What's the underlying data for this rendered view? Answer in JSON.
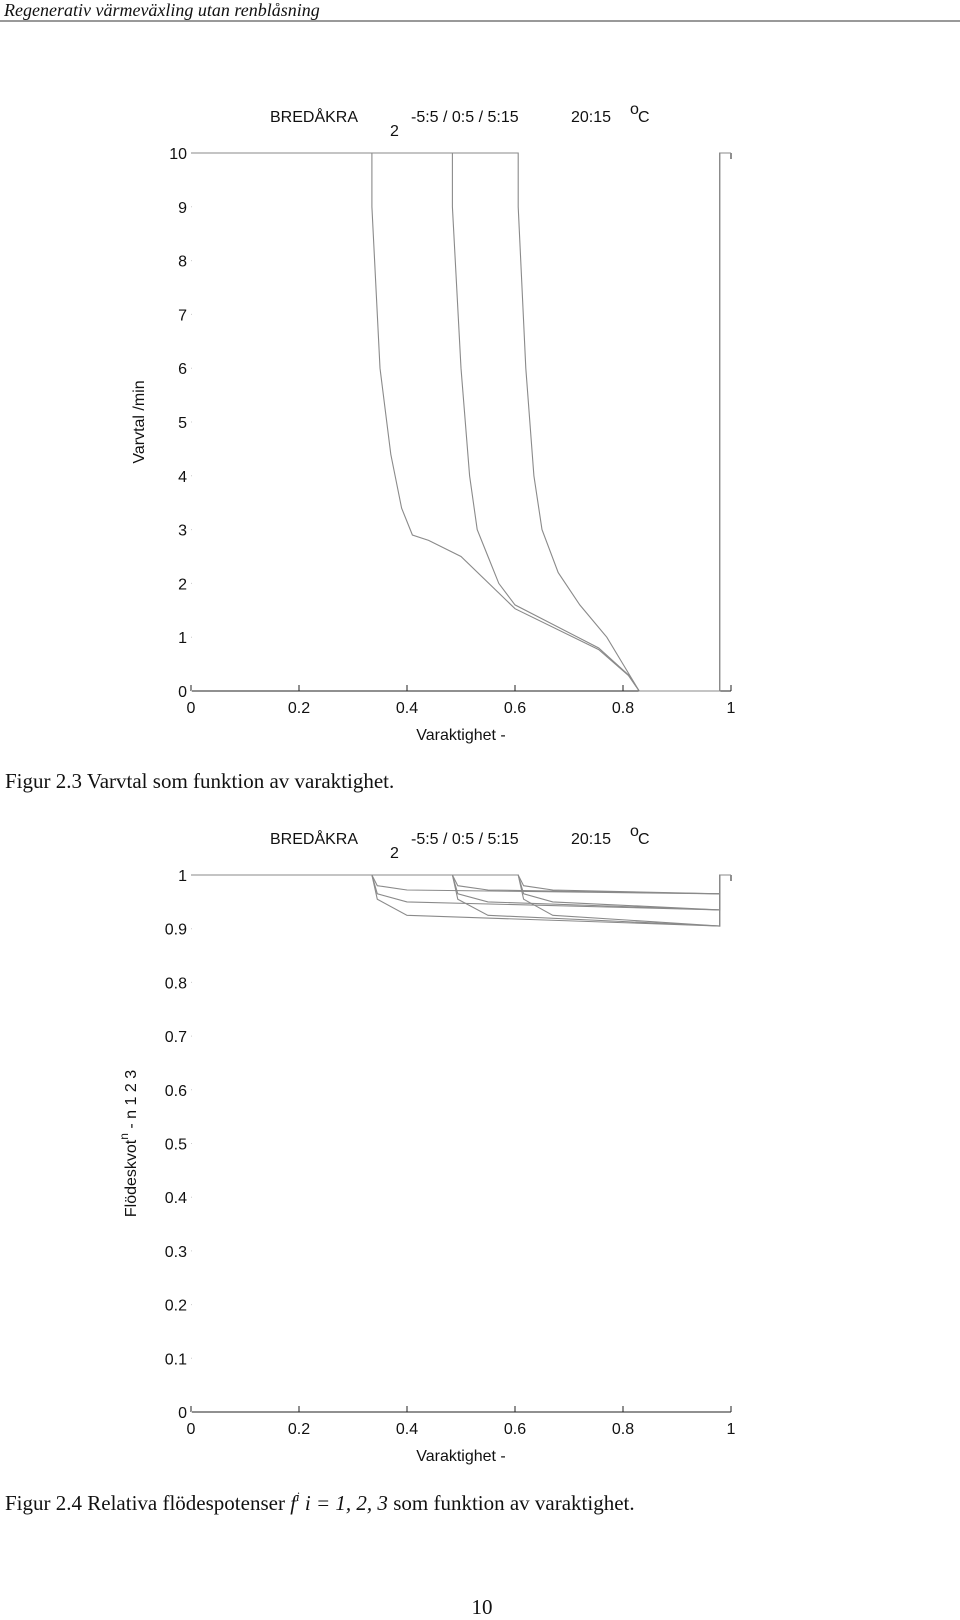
{
  "header": "Regenerativ värmeväxling utan renblåsning",
  "chart_data": [
    {
      "type": "line",
      "title": [
        "BREDÅKRA",
        "2",
        "-5:5 / 0:5 / 5:15",
        "20:15",
        "o",
        "C"
      ],
      "ylabel": [
        "Varvtal  /min"
      ],
      "xlabel": "Varaktighet  -",
      "xlim": [
        0,
        1
      ],
      "xticks": [
        0,
        0.2,
        0.4,
        0.6,
        0.8,
        1
      ],
      "ylim": [
        0,
        10
      ],
      "yticks": [
        0,
        1,
        2,
        3,
        4,
        5,
        6,
        7,
        8,
        9,
        10
      ],
      "color": "#8a8a8a",
      "series": [
        {
          "x": [
            0,
            0.335,
            0.335,
            0.35,
            0.37,
            0.39,
            0.41,
            0.44,
            0.5,
            0.6,
            0.755,
            0.81,
            0.83,
            0.979,
            0.979,
            1
          ],
          "values": [
            10,
            10,
            9,
            6,
            4.4,
            3.4,
            2.9,
            2.8,
            2.5,
            1.53,
            0.77,
            0.29,
            0,
            0,
            10,
            10
          ]
        },
        {
          "x": [
            0,
            0.484,
            0.484,
            0.5,
            0.516,
            0.53,
            0.55,
            0.57,
            0.6,
            0.755,
            0.81,
            0.83,
            0.979,
            0.979,
            1
          ],
          "values": [
            10,
            10,
            9,
            6,
            4,
            3,
            2.5,
            2,
            1.6,
            0.8,
            0.3,
            0,
            0,
            10,
            10
          ]
        },
        {
          "x": [
            0,
            0.606,
            0.606,
            0.62,
            0.635,
            0.65,
            0.68,
            0.72,
            0.77,
            0.8,
            0.83,
            0.979,
            0.979,
            1
          ],
          "values": [
            10,
            10,
            9,
            6,
            4,
            3,
            2.2,
            1.6,
            1,
            0.5,
            0,
            0,
            10,
            10
          ]
        }
      ]
    },
    {
      "type": "line",
      "title": [
        "BREDÅKRA",
        "2",
        "-5:5 / 0:5 / 5:15",
        "20:15",
        "o",
        "C"
      ],
      "ylabel": [
        "Flödeskvot",
        "n",
        "  -  n 1 2 3"
      ],
      "xlabel": "Varaktighet  -",
      "xlim": [
        0,
        1
      ],
      "xticks": [
        0,
        0.2,
        0.4,
        0.6,
        0.8,
        1
      ],
      "ylim": [
        0,
        1
      ],
      "yticks": [
        0,
        0.1,
        0.2,
        0.3,
        0.4,
        0.5,
        0.6,
        0.7,
        0.8,
        0.9,
        1
      ],
      "color": "#8a8a8a",
      "series": [
        {
          "x": [
            0,
            0.335,
            0.345,
            0.4,
            0.979,
            0.979,
            1
          ],
          "values": [
            1,
            1,
            0.98,
            0.972,
            0.965,
            1,
            1
          ]
        },
        {
          "x": [
            0,
            0.335,
            0.345,
            0.4,
            0.979,
            0.979,
            1
          ],
          "values": [
            1,
            1,
            0.965,
            0.95,
            0.935,
            1,
            1
          ]
        },
        {
          "x": [
            0,
            0.335,
            0.345,
            0.4,
            0.979,
            0.979,
            1
          ],
          "values": [
            1,
            1,
            0.955,
            0.925,
            0.905,
            1,
            1
          ]
        },
        {
          "x": [
            0,
            0.484,
            0.494,
            0.55,
            0.979,
            0.979,
            1
          ],
          "values": [
            1,
            1,
            0.98,
            0.972,
            0.965,
            1,
            1
          ]
        },
        {
          "x": [
            0,
            0.484,
            0.494,
            0.55,
            0.979,
            0.979,
            1
          ],
          "values": [
            1,
            1,
            0.965,
            0.95,
            0.935,
            1,
            1
          ]
        },
        {
          "x": [
            0,
            0.484,
            0.494,
            0.55,
            0.979,
            0.979,
            1
          ],
          "values": [
            1,
            1,
            0.955,
            0.925,
            0.905,
            1,
            1
          ]
        },
        {
          "x": [
            0,
            0.606,
            0.616,
            0.67,
            0.979,
            0.979,
            1
          ],
          "values": [
            1,
            1,
            0.98,
            0.972,
            0.965,
            1,
            1
          ]
        },
        {
          "x": [
            0,
            0.606,
            0.616,
            0.67,
            0.979,
            0.979,
            1
          ],
          "values": [
            1,
            1,
            0.965,
            0.95,
            0.935,
            1,
            1
          ]
        },
        {
          "x": [
            0,
            0.606,
            0.616,
            0.67,
            0.979,
            0.979,
            1
          ],
          "values": [
            1,
            1,
            0.955,
            0.925,
            0.905,
            1,
            1
          ]
        }
      ]
    }
  ],
  "captions": [
    [
      "Figur 2.3 Varvtal som funktion av varaktighet."
    ],
    [
      "Figur 2.4 Relativa flödespotenser ",
      "f",
      "i",
      " i = 1, 2, 3",
      " som funktion av varaktighet."
    ]
  ],
  "page_number": "10"
}
